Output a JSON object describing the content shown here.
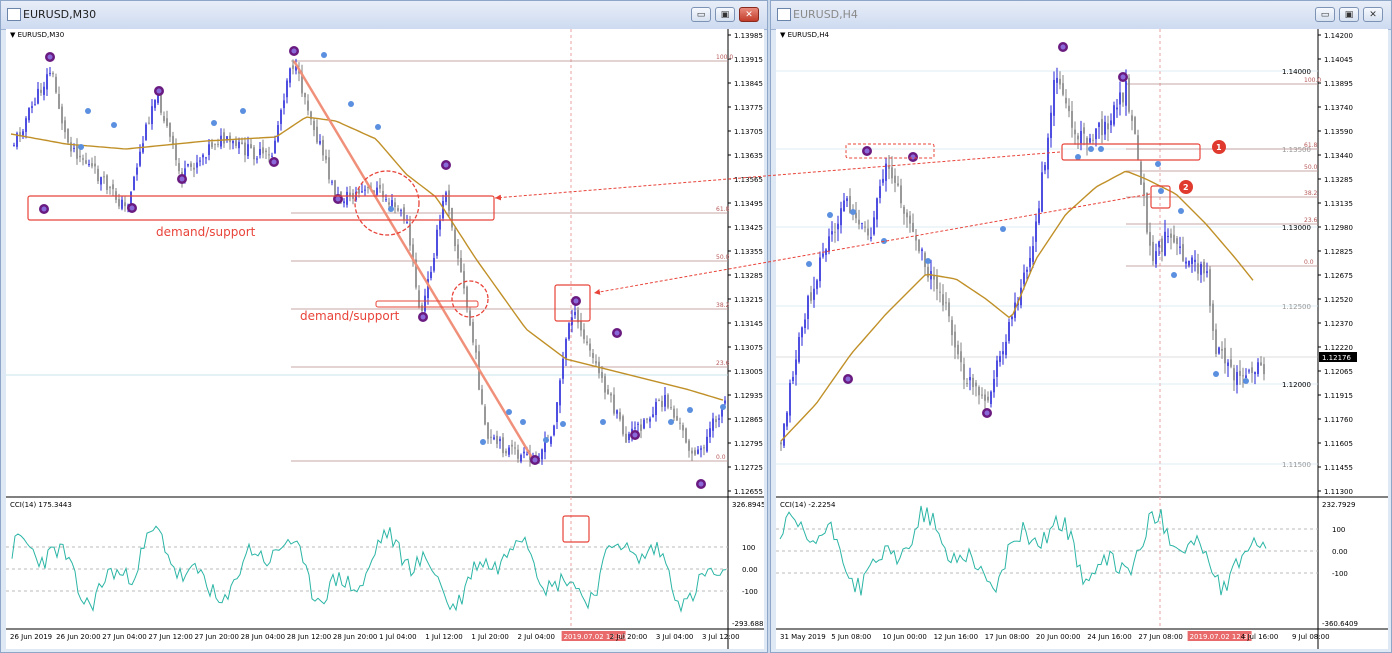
{
  "windows": [
    {
      "title": "EURUSD,M30",
      "active": true,
      "main_label": "EURUSD,M30",
      "osc_label": "CCI(14) 175.3443",
      "price_ticks": [
        "1.13985",
        "1.13915",
        "1.13845",
        "1.13775",
        "1.13705",
        "1.13635",
        "1.13565",
        "1.13495",
        "1.13425",
        "1.13355",
        "1.13285",
        "1.13215",
        "1.13145",
        "1.13075",
        "1.13005",
        "1.12935",
        "1.12865",
        "1.12795",
        "1.12725",
        "1.12655"
      ],
      "osc_ticks": [
        "326.8945",
        "100",
        "0.00",
        "-100",
        "-293.6883"
      ],
      "time_labels": [
        "26 Jun 2019",
        "26 Jun 20:00",
        "27 Jun 04:00",
        "27 Jun 12:00",
        "27 Jun 20:00",
        "28 Jun 04:00",
        "28 Jun 12:00",
        "28 Jun 20:00",
        "1 Jul 04:00",
        "1 Jul 12:00",
        "1 Jul 20:00",
        "2 Jul 04:00",
        "2019.07.02 12:30",
        "2 Jul 20:00",
        "3 Jul 04:00",
        "3 Jul 12:00"
      ],
      "fib_levels": [
        "100.0",
        "61.8",
        "50.0",
        "38.2",
        "23.6",
        "0.0"
      ],
      "annotations": [
        "demand/support",
        "demand/support"
      ]
    },
    {
      "title": "EURUSD,H4",
      "active": false,
      "main_label": "EURUSD,H4",
      "osc_label": "CCI(14) -2.2254",
      "price_ticks": [
        "1.14200",
        "1.14045",
        "1.13895",
        "1.13740",
        "1.13590",
        "1.13440",
        "1.13285",
        "1.13135",
        "1.12980",
        "1.12825",
        "1.12675",
        "1.12520",
        "1.12370",
        "1.12220",
        "1.12065",
        "1.11915",
        "1.11760",
        "1.11605",
        "1.11455",
        "1.11300"
      ],
      "current_price": "1.12176",
      "osc_ticks": [
        "232.7929",
        "100",
        "0.00",
        "-100",
        "-360.6409"
      ],
      "time_labels": [
        "31 May 2019",
        "5 Jun 08:00",
        "10 Jun 00:00",
        "12 Jun 16:00",
        "17 Jun 08:00",
        "20 Jun 00:00",
        "24 Jun 16:00",
        "27 Jun 08:00",
        "2019.07.02 12:30",
        "4 Jul 16:00",
        "9 Jul 08:00"
      ],
      "round_levels": [
        "1.14000",
        "1.13500",
        "1.13000",
        "1.12500",
        "1.12000",
        "1.11500"
      ],
      "fib_levels": [
        "100.0",
        "61.8",
        "50.0",
        "38.2",
        "23.6",
        "0.0"
      ],
      "markers": [
        "1",
        "2"
      ]
    }
  ],
  "colors": {
    "bull": "#2323d9",
    "bear": "#808080",
    "ma": "#c09028",
    "cci": "#2bb5a5",
    "annotation": "#e8443a",
    "pivot": "#5b8fdf",
    "pivot_major": "#6a1b80"
  }
}
